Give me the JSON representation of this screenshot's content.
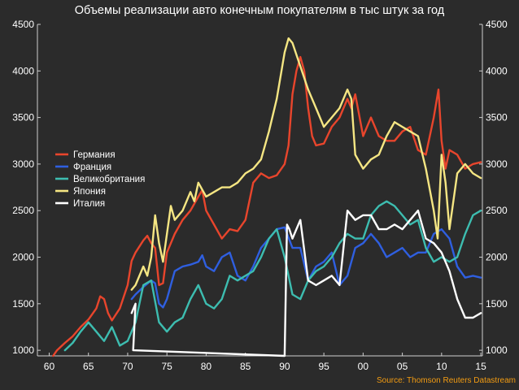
{
  "chart_data": {
    "type": "line",
    "title": "Объемы реализации авто конечным покупателям в тыс штук за год",
    "source": "Source: Thomson Reuters Datastream",
    "xlabel": "",
    "ylabel": "",
    "xlim": [
      1958.5,
      2015.2
    ],
    "ylim": [
      940,
      4500
    ],
    "x_ticks": [
      1960,
      1965,
      1970,
      1975,
      1980,
      1985,
      1990,
      1995,
      2000,
      2005,
      2010,
      2015
    ],
    "x_tick_labels": [
      "60",
      "65",
      "70",
      "75",
      "80",
      "85",
      "90",
      "95",
      "00",
      "05",
      "10",
      "15"
    ],
    "y_ticks": [
      1000,
      1500,
      2000,
      2500,
      3000,
      3500,
      4000,
      4500
    ],
    "y_tick_labels": [
      "1000",
      "1500",
      "2000",
      "2500",
      "3000",
      "3500",
      "4000",
      "4500"
    ],
    "grid": false,
    "legend_position": "left",
    "series": [
      {
        "name": "Германия",
        "color": "#e8452c",
        "points": [
          [
            1960.5,
            940
          ],
          [
            1961,
            1000
          ],
          [
            1962,
            1080
          ],
          [
            1963,
            1150
          ],
          [
            1964,
            1250
          ],
          [
            1965,
            1330
          ],
          [
            1966,
            1450
          ],
          [
            1966.5,
            1580
          ],
          [
            1967,
            1550
          ],
          [
            1967.5,
            1400
          ],
          [
            1968,
            1320
          ],
          [
            1969,
            1450
          ],
          [
            1970,
            1700
          ],
          [
            1970.5,
            1960
          ],
          [
            1971,
            2050
          ],
          [
            1972,
            2180
          ],
          [
            1972.5,
            2230
          ],
          [
            1973,
            2150
          ],
          [
            1973.5,
            2100
          ],
          [
            1974,
            1700
          ],
          [
            1974.5,
            1720
          ],
          [
            1975,
            2050
          ],
          [
            1976,
            2250
          ],
          [
            1977,
            2400
          ],
          [
            1978,
            2500
          ],
          [
            1979,
            2650
          ],
          [
            1979.5,
            2720
          ],
          [
            1980,
            2500
          ],
          [
            1981,
            2350
          ],
          [
            1982,
            2200
          ],
          [
            1983,
            2300
          ],
          [
            1984,
            2280
          ],
          [
            1985,
            2400
          ],
          [
            1986,
            2800
          ],
          [
            1987,
            2900
          ],
          [
            1988,
            2850
          ],
          [
            1989,
            2880
          ],
          [
            1990,
            3000
          ],
          [
            1990.5,
            3200
          ],
          [
            1991,
            3750
          ],
          [
            1991.5,
            4000
          ],
          [
            1992,
            4150
          ],
          [
            1992.5,
            4000
          ],
          [
            1993,
            3600
          ],
          [
            1993.5,
            3300
          ],
          [
            1994,
            3200
          ],
          [
            1995,
            3220
          ],
          [
            1996,
            3400
          ],
          [
            1997,
            3500
          ],
          [
            1998,
            3700
          ],
          [
            1998.5,
            3600
          ],
          [
            1999,
            3750
          ],
          [
            2000,
            3300
          ],
          [
            2001,
            3500
          ],
          [
            2002,
            3300
          ],
          [
            2003,
            3250
          ],
          [
            2004,
            3250
          ],
          [
            2005,
            3350
          ],
          [
            2006,
            3400
          ],
          [
            2007,
            3150
          ],
          [
            2008,
            3100
          ],
          [
            2009,
            3500
          ],
          [
            2009.6,
            3800
          ],
          [
            2010,
            3250
          ],
          [
            2010.5,
            2950
          ],
          [
            2011,
            3150
          ],
          [
            2012,
            3100
          ],
          [
            2013,
            2950
          ],
          [
            2014,
            3000
          ],
          [
            2015,
            3020
          ]
        ]
      },
      {
        "name": "Франция",
        "color": "#2f5fe0",
        "points": [
          [
            1970.5,
            1550
          ],
          [
            1971,
            1600
          ],
          [
            1972,
            1680
          ],
          [
            1973,
            1750
          ],
          [
            1973.5,
            1720
          ],
          [
            1974,
            1500
          ],
          [
            1974.5,
            1460
          ],
          [
            1975,
            1550
          ],
          [
            1976,
            1850
          ],
          [
            1977,
            1900
          ],
          [
            1978,
            1920
          ],
          [
            1979,
            1950
          ],
          [
            1979.5,
            2020
          ],
          [
            1980,
            1900
          ],
          [
            1981,
            1850
          ],
          [
            1982,
            2000
          ],
          [
            1983,
            2050
          ],
          [
            1984,
            1800
          ],
          [
            1985,
            1750
          ],
          [
            1986,
            1900
          ],
          [
            1987,
            2100
          ],
          [
            1988,
            2200
          ],
          [
            1989,
            2300
          ],
          [
            1990,
            2320
          ],
          [
            1991,
            2100
          ],
          [
            1992,
            2100
          ],
          [
            1993,
            1750
          ],
          [
            1994,
            1900
          ],
          [
            1995,
            1950
          ],
          [
            1996,
            2050
          ],
          [
            1997,
            1700
          ],
          [
            1998,
            1800
          ],
          [
            1999,
            2100
          ],
          [
            2000,
            2150
          ],
          [
            2001,
            2250
          ],
          [
            2002,
            2150
          ],
          [
            2003,
            2000
          ],
          [
            2004,
            2050
          ],
          [
            2005,
            2100
          ],
          [
            2006,
            2000
          ],
          [
            2007,
            2050
          ],
          [
            2008,
            2050
          ],
          [
            2009,
            2250
          ],
          [
            2010,
            2300
          ],
          [
            2011,
            2200
          ],
          [
            2012,
            1900
          ],
          [
            2013,
            1780
          ],
          [
            2014,
            1800
          ],
          [
            2015,
            1780
          ]
        ]
      },
      {
        "name": "Великобритания",
        "color": "#3dbdb0",
        "points": [
          [
            1962,
            1000
          ],
          [
            1963,
            1080
          ],
          [
            1964,
            1200
          ],
          [
            1965,
            1300
          ],
          [
            1966,
            1200
          ],
          [
            1967,
            1100
          ],
          [
            1968,
            1250
          ],
          [
            1969,
            1050
          ],
          [
            1970,
            1100
          ],
          [
            1971,
            1300
          ],
          [
            1972,
            1700
          ],
          [
            1973,
            1750
          ],
          [
            1974,
            1300
          ],
          [
            1975,
            1200
          ],
          [
            1976,
            1300
          ],
          [
            1977,
            1350
          ],
          [
            1978,
            1550
          ],
          [
            1979,
            1700
          ],
          [
            1980,
            1500
          ],
          [
            1981,
            1450
          ],
          [
            1982,
            1550
          ],
          [
            1983,
            1800
          ],
          [
            1984,
            1750
          ],
          [
            1985,
            1800
          ],
          [
            1986,
            1850
          ],
          [
            1987,
            2000
          ],
          [
            1988,
            2200
          ],
          [
            1989,
            2300
          ],
          [
            1990,
            2000
          ],
          [
            1991,
            1600
          ],
          [
            1992,
            1550
          ],
          [
            1993,
            1750
          ],
          [
            1994,
            1850
          ],
          [
            1995,
            1900
          ],
          [
            1996,
            2000
          ],
          [
            1997,
            2150
          ],
          [
            1998,
            2250
          ],
          [
            1999,
            2200
          ],
          [
            2000,
            2200
          ],
          [
            2001,
            2450
          ],
          [
            2002,
            2550
          ],
          [
            2003,
            2600
          ],
          [
            2004,
            2550
          ],
          [
            2005,
            2450
          ],
          [
            2006,
            2350
          ],
          [
            2007,
            2400
          ],
          [
            2008,
            2100
          ],
          [
            2009,
            1950
          ],
          [
            2010,
            2000
          ],
          [
            2011,
            1950
          ],
          [
            2012,
            2000
          ],
          [
            2013,
            2250
          ],
          [
            2014,
            2450
          ],
          [
            2015,
            2500
          ]
        ]
      },
      {
        "name": "Япония",
        "color": "#f5e683",
        "points": [
          [
            1970.5,
            1650
          ],
          [
            1971,
            1700
          ],
          [
            1972,
            1900
          ],
          [
            1972.5,
            1800
          ],
          [
            1973,
            2000
          ],
          [
            1973.5,
            2450
          ],
          [
            1974,
            2150
          ],
          [
            1974.5,
            1950
          ],
          [
            1975,
            2250
          ],
          [
            1975.5,
            2550
          ],
          [
            1976,
            2400
          ],
          [
            1977,
            2500
          ],
          [
            1978,
            2700
          ],
          [
            1978.5,
            2600
          ],
          [
            1979,
            2800
          ],
          [
            1980,
            2650
          ],
          [
            1981,
            2700
          ],
          [
            1982,
            2750
          ],
          [
            1983,
            2750
          ],
          [
            1984,
            2800
          ],
          [
            1985,
            2900
          ],
          [
            1986,
            2950
          ],
          [
            1987,
            3050
          ],
          [
            1988,
            3350
          ],
          [
            1989,
            3700
          ],
          [
            1990,
            4200
          ],
          [
            1990.5,
            4350
          ],
          [
            1991,
            4300
          ],
          [
            1992,
            4050
          ],
          [
            1993,
            3800
          ],
          [
            1994,
            3600
          ],
          [
            1995,
            3400
          ],
          [
            1996,
            3500
          ],
          [
            1997,
            3600
          ],
          [
            1998,
            3800
          ],
          [
            1998.5,
            3700
          ],
          [
            1999,
            3100
          ],
          [
            2000,
            2950
          ],
          [
            2001,
            3050
          ],
          [
            2002,
            3100
          ],
          [
            2003,
            3300
          ],
          [
            2004,
            3450
          ],
          [
            2005,
            3400
          ],
          [
            2006,
            3350
          ],
          [
            2007,
            3300
          ],
          [
            2008,
            2950
          ],
          [
            2009,
            2500
          ],
          [
            2009.5,
            2200
          ],
          [
            2010,
            3100
          ],
          [
            2010.5,
            2800
          ],
          [
            2011,
            2300
          ],
          [
            2012,
            2900
          ],
          [
            2013,
            3000
          ],
          [
            2014,
            2900
          ],
          [
            2015,
            2850
          ]
        ]
      },
      {
        "name": "Италия",
        "color": "#ffffff",
        "points": [
          [
            1970.5,
            1400
          ],
          [
            1971,
            1500
          ],
          [
            1970.7,
            1000
          ],
          [
            1990,
            940
          ],
          [
            1990.3,
            2350
          ],
          [
            1990.6,
            2300
          ],
          [
            1991,
            2200
          ],
          [
            1992,
            2400
          ],
          [
            1993,
            1750
          ],
          [
            1994,
            1700
          ],
          [
            1995,
            1750
          ],
          [
            1996,
            1800
          ],
          [
            1997,
            1700
          ],
          [
            1998,
            2500
          ],
          [
            1999,
            2400
          ],
          [
            2000,
            2450
          ],
          [
            2001,
            2450
          ],
          [
            2002,
            2300
          ],
          [
            2003,
            2300
          ],
          [
            2004,
            2350
          ],
          [
            2005,
            2300
          ],
          [
            2006,
            2400
          ],
          [
            2007,
            2500
          ],
          [
            2008,
            2200
          ],
          [
            2009,
            2150
          ],
          [
            2010,
            2050
          ],
          [
            2011,
            1850
          ],
          [
            2012,
            1550
          ],
          [
            2013,
            1350
          ],
          [
            2014,
            1350
          ],
          [
            2015,
            1400
          ]
        ]
      }
    ]
  }
}
